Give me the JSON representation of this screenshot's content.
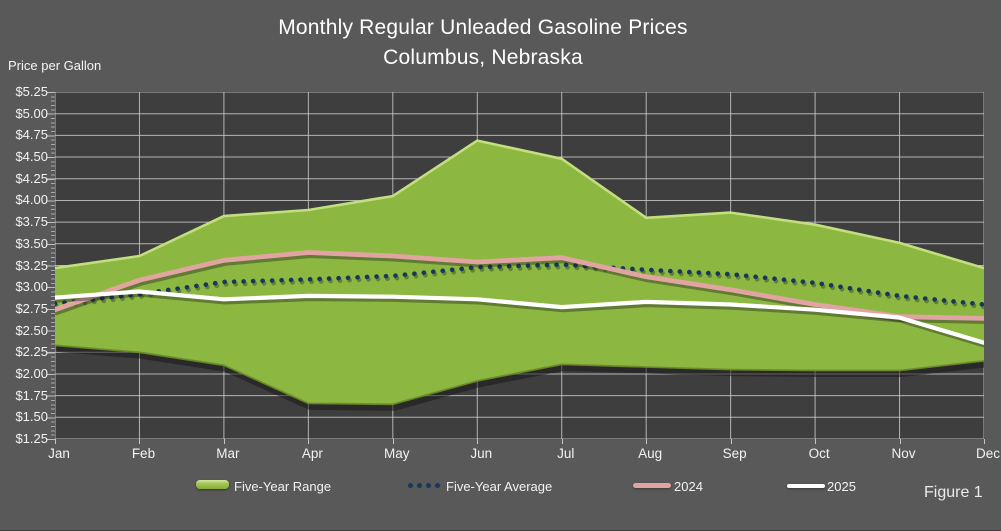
{
  "chart_data": {
    "type": "area",
    "subtype": "range-band-with-lines",
    "title": "Monthly Regular Unleaded Gasoline Prices",
    "subtitle": "Columbus, Nebraska",
    "ylabel": "Price per Gallon",
    "figure_caption": "Figure 1",
    "x_categories": [
      "Jan",
      "Feb",
      "Mar",
      "Apr",
      "May",
      "Jun",
      "Jul",
      "Aug",
      "Sep",
      "Oct",
      "Nov",
      "Dec"
    ],
    "y_tick_labels": [
      "$5.25",
      "$5.00",
      "$4.75",
      "$4.50",
      "$4.25",
      "$4.00",
      "$3.75",
      "$3.50",
      "$3.25",
      "$3.00",
      "$2.75",
      "$2.50",
      "$2.25",
      "$2.00",
      "$1.75",
      "$1.50",
      "$1.25"
    ],
    "ylim": [
      1.25,
      5.25
    ],
    "y_step": 0.25,
    "grid": true,
    "legend_position": "bottom",
    "series": [
      {
        "name": "Five-Year Range",
        "type": "area-range",
        "color": "#8CB741",
        "highlight_color": "#C3DE7E",
        "edge_color": "#6B8A2A",
        "high": [
          3.22,
          3.36,
          3.82,
          3.89,
          4.05,
          4.69,
          4.48,
          3.8,
          3.86,
          3.72,
          3.51,
          3.22
        ],
        "low": [
          2.33,
          2.25,
          2.1,
          1.66,
          1.65,
          1.92,
          2.11,
          2.08,
          2.05,
          2.04,
          2.04,
          2.15
        ]
      },
      {
        "name": "Five-Year Average",
        "type": "dotted-line",
        "color": "#17375E",
        "values": [
          2.81,
          2.92,
          3.06,
          3.09,
          3.13,
          3.23,
          3.26,
          3.2,
          3.15,
          3.05,
          2.9,
          2.8
        ]
      },
      {
        "name": "2024",
        "type": "line",
        "color": "#E2A3A3",
        "values": [
          2.74,
          3.08,
          3.31,
          3.4,
          3.36,
          3.29,
          3.34,
          3.12,
          2.97,
          2.8,
          2.66,
          2.64
        ]
      },
      {
        "name": "2025",
        "type": "line",
        "color": "#FFFFFF",
        "values": [
          2.88,
          2.95,
          2.86,
          2.9,
          2.89,
          2.86,
          2.77,
          2.83,
          2.8,
          2.74,
          2.65,
          2.36
        ]
      }
    ]
  },
  "colors": {
    "page_background": "#595959",
    "plot_background": "#3E3E3E",
    "gridline": "#C9C9C9",
    "axis_text": "#F2F2F2",
    "title_text": "#FFFFFF"
  }
}
